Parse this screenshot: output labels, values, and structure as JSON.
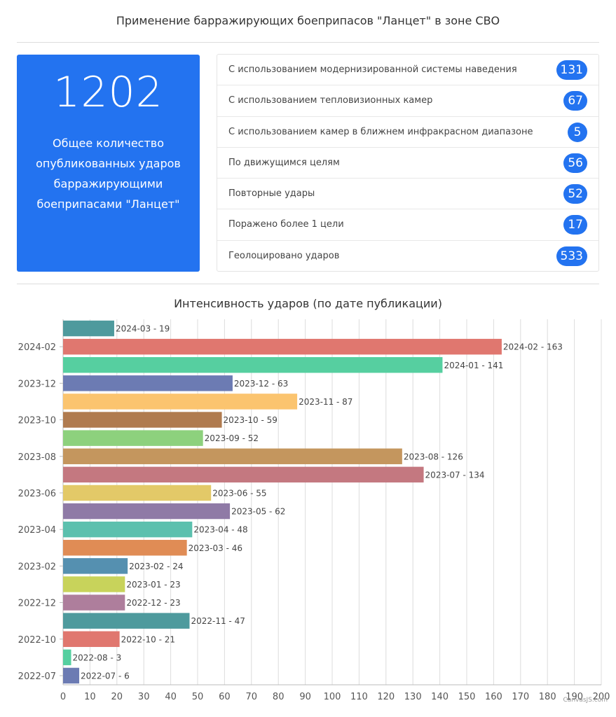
{
  "header": {
    "title": "Применение барражирующих боеприпасов \"Ланцет\" в зоне СВО"
  },
  "summary": {
    "total_value": "1202",
    "total_caption": "Общее количество опубликованных ударов барражирующими боеприпасами \"Ланцет\""
  },
  "stats": [
    {
      "label": "С использованием модернизированной системы наведения",
      "value": "131"
    },
    {
      "label": "С использованием тепловизионных камер",
      "value": "67"
    },
    {
      "label": "С использованием камер в ближнем инфракрасном диапазоне",
      "value": "5"
    },
    {
      "label": "По движущимся целям",
      "value": "56"
    },
    {
      "label": "Повторные удары",
      "value": "52"
    },
    {
      "label": "Поражено более 1 цели",
      "value": "17"
    },
    {
      "label": "Геолоцировано ударов",
      "value": "533"
    }
  ],
  "chart_credit": "CanvasJS.com",
  "chart_data": {
    "type": "bar",
    "orientation": "horizontal",
    "title": "Интенсивность ударов (по дате публикации)",
    "categories": [
      "2024-03",
      "2024-02",
      "2024-01",
      "2023-12",
      "2023-11",
      "2023-10",
      "2023-09",
      "2023-08",
      "2023-07",
      "2023-06",
      "2023-05",
      "2023-04",
      "2023-03",
      "2023-02",
      "2023-01",
      "2022-12",
      "2022-11",
      "2022-10",
      "2022-08",
      "2022-07"
    ],
    "values": [
      19,
      163,
      141,
      63,
      87,
      59,
      52,
      126,
      134,
      55,
      62,
      48,
      46,
      24,
      23,
      23,
      47,
      21,
      3,
      6
    ],
    "data_labels": [
      "2024-03 - 19",
      "2024-02 - 163",
      "2024-01 - 141",
      "2023-12 - 63",
      "2023-11 - 87",
      "2023-10 - 59",
      "2023-09 - 52",
      "2023-08 - 126",
      "2023-07 - 134",
      "2023-06 - 55",
      "2023-05 - 62",
      "2023-04 - 48",
      "2023-03 - 46",
      "2023-02 - 24",
      "2023-01 - 23",
      "2022-12 - 23",
      "2022-11 - 47",
      "2022-10 - 21",
      "2022-08 - 3",
      "2022-07 - 6"
    ],
    "colors": [
      "#4e9a9d",
      "#e0776f",
      "#56cfa0",
      "#6c7bb3",
      "#fbc46f",
      "#b07b4f",
      "#8dd17d",
      "#c4965e",
      "#c47880",
      "#e3c968",
      "#8f7aa6",
      "#5cc0ae",
      "#e08c55",
      "#5590b0",
      "#c8d35b",
      "#ae7e9c",
      "#4e9a9d",
      "#e0776f",
      "#56cfa0",
      "#6c7bb3"
    ],
    "y_tick_labels": [
      "2024-02",
      "2023-12",
      "2023-10",
      "2023-08",
      "2023-06",
      "2023-04",
      "2023-02",
      "2022-12",
      "2022-10",
      "2022-07"
    ],
    "xlim": [
      0,
      200
    ],
    "x_ticks": [
      0,
      10,
      20,
      30,
      40,
      50,
      60,
      70,
      80,
      90,
      100,
      110,
      120,
      130,
      140,
      150,
      160,
      170,
      180,
      190,
      200
    ],
    "grid": "vertical"
  }
}
